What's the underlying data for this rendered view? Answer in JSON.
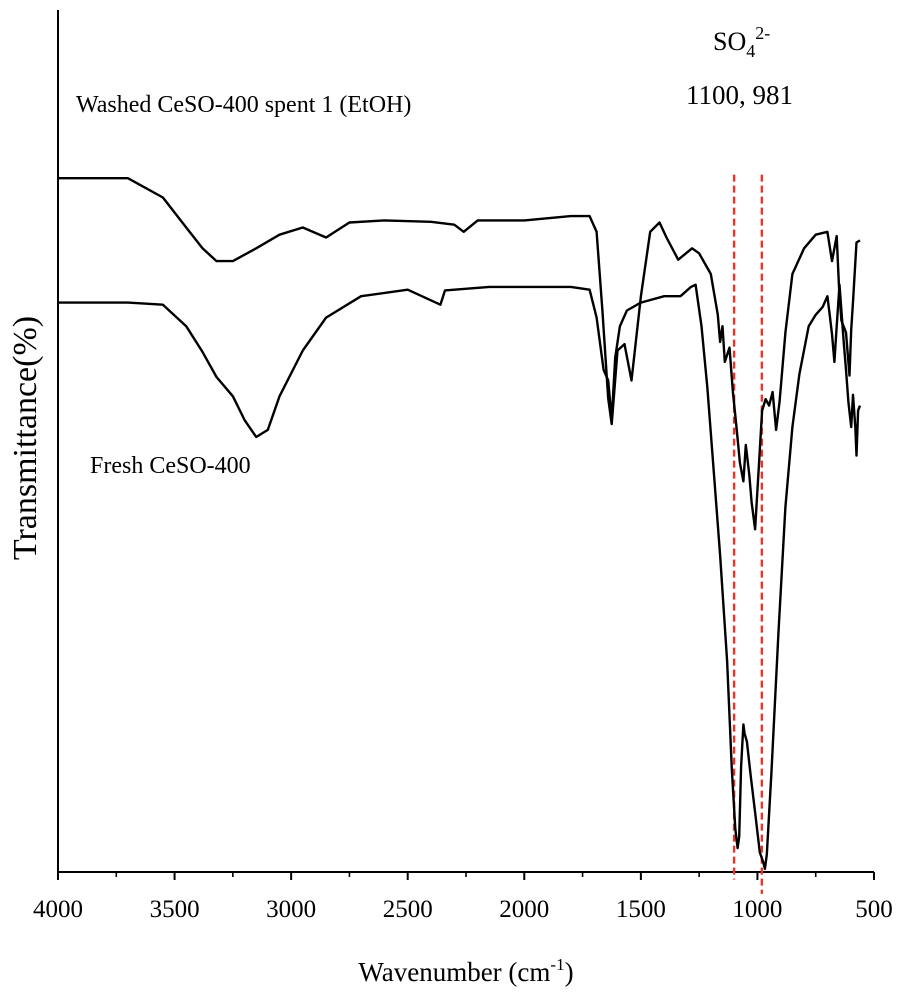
{
  "chart_data": {
    "type": "line",
    "title": "",
    "xlabel": "Wavenumber (cm",
    "xlabel_sup": "-1",
    "xlabel_end": ")",
    "ylabel": "Transmittance(%)",
    "xlim": [
      4000,
      500
    ],
    "x_reversed": true,
    "ylim": [
      0,
      100
    ],
    "y_ticks_shown": false,
    "x_ticks": [
      4000,
      3500,
      3000,
      2500,
      2000,
      1500,
      1000,
      500
    ],
    "x_tick_labels": [
      "4000",
      "3500",
      "3000",
      "2500",
      "2000",
      "1500",
      "1000",
      "500"
    ],
    "series": [
      {
        "name": "Washed CeSO-400 spent 1 (EtOH)",
        "label": "Washed CeSO-400 spent 1 (EtOH)",
        "color": "#000000",
        "x": [
          4000,
          3700,
          3550,
          3450,
          3380,
          3320,
          3250,
          3150,
          3050,
          2950,
          2850,
          2750,
          2600,
          2400,
          2300,
          2260,
          2200,
          2000,
          1800,
          1720,
          1690,
          1665,
          1640,
          1625,
          1600,
          1570,
          1540,
          1500,
          1460,
          1420,
          1390,
          1340,
          1280,
          1250,
          1200,
          1170,
          1160,
          1150,
          1140,
          1120,
          1105,
          1090,
          1075,
          1060,
          1050,
          1035,
          1025,
          1010,
          995,
          980,
          965,
          950,
          935,
          920,
          905,
          880,
          850,
          800,
          750,
          700,
          680,
          660,
          650,
          640,
          620,
          605,
          598,
          590,
          575,
          560
        ],
        "y": [
          94.1,
          94.1,
          91.4,
          87.2,
          84.3,
          82.5,
          82.5,
          84.3,
          86.2,
          87.2,
          85.8,
          87.9,
          88.2,
          88.0,
          87.6,
          86.6,
          88.2,
          88.2,
          88.8,
          88.8,
          86.6,
          75.6,
          63.3,
          59.7,
          70.0,
          70.9,
          65.8,
          77.6,
          86.6,
          87.9,
          85.8,
          82.7,
          84.3,
          83.6,
          80.7,
          75.0,
          71.2,
          73.4,
          68.4,
          70.4,
          64.2,
          59.4,
          54.3,
          51.7,
          56.8,
          52.6,
          48.8,
          45.0,
          53.2,
          61.6,
          63.2,
          62.3,
          64.2,
          58.9,
          62.9,
          72.5,
          80.7,
          84.3,
          86.2,
          86.6,
          82.5,
          86.0,
          78.9,
          74.2,
          72.5,
          66.5,
          72.9,
          76.8,
          85.1,
          85.4
        ],
        "label_color": "#000000"
      },
      {
        "name": "Fresh CeSO-400",
        "label": "Fresh CeSO-400",
        "color": "#000000",
        "x": [
          4000,
          3700,
          3550,
          3450,
          3380,
          3320,
          3250,
          3200,
          3150,
          3100,
          3050,
          2950,
          2850,
          2700,
          2500,
          2360,
          2340,
          2300,
          2150,
          2000,
          1800,
          1720,
          1690,
          1660,
          1640,
          1625,
          1610,
          1590,
          1560,
          1500,
          1400,
          1330,
          1285,
          1265,
          1240,
          1215,
          1190,
          1160,
          1130,
          1110,
          1095,
          1085,
          1078,
          1070,
          1060,
          1055,
          1045,
          1030,
          1010,
          990,
          975,
          968,
          960,
          940,
          910,
          880,
          850,
          820,
          780,
          750,
          720,
          700,
          690,
          680,
          670,
          660,
          648,
          640,
          630,
          620,
          610,
          598,
          590,
          580,
          575,
          568,
          560
        ],
        "y": [
          76.7,
          76.7,
          76.4,
          73.4,
          69.8,
          66.3,
          63.6,
          60.3,
          57.9,
          58.9,
          63.6,
          70.0,
          74.6,
          77.6,
          78.5,
          76.4,
          78.4,
          78.5,
          78.9,
          78.9,
          78.9,
          78.5,
          74.6,
          67.3,
          65.8,
          60.3,
          69.0,
          73.4,
          75.6,
          76.7,
          77.6,
          77.6,
          78.9,
          79.2,
          73.4,
          64.9,
          54.3,
          41.4,
          26.6,
          11.5,
          3.1,
          0.4,
          2.0,
          11.8,
          17.7,
          16.4,
          15.3,
          10.9,
          5.4,
          -0.2,
          -1.6,
          -2.5,
          -0.5,
          10.9,
          30.4,
          48.1,
          59.3,
          66.7,
          73.4,
          75.0,
          76.1,
          77.6,
          75.0,
          72.3,
          68.4,
          73.4,
          79.2,
          75.6,
          71.2,
          67.3,
          62.8,
          59.3,
          63.8,
          59.3,
          55.3,
          61.6,
          62.3
        ],
        "label_color": "#000000"
      }
    ],
    "reference_lines": [
      {
        "x": 1100,
        "color": "#e8352a",
        "style": "dashed",
        "y_from": -4,
        "y_to": 94.6
      },
      {
        "x": 981,
        "color": "#e8352a",
        "style": "dashed",
        "y_from": -6,
        "y_to": 94.6
      }
    ],
    "annotations": {
      "so4_base": "SO",
      "so4_sub": "4",
      "so4_sup": "2-",
      "peaks_text": "1100, 981"
    }
  }
}
